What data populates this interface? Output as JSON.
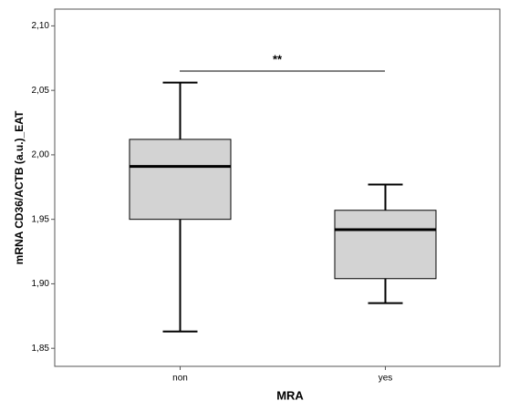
{
  "chart_data": {
    "type": "box",
    "x_label": "MRA",
    "y_label": "mRNA CD36/ACTB (a.u.)_EAT",
    "annotation": "**",
    "categories": [
      "non",
      "yes"
    ],
    "low": [
      1.863,
      1.885
    ],
    "q1": [
      1.95,
      1.904
    ],
    "median": [
      1.991,
      1.942
    ],
    "q3": [
      2.012,
      1.957
    ],
    "high": [
      2.056,
      1.977
    ],
    "color": "#d3d3d3",
    "ylim": [
      1.836,
      2.113
    ],
    "yticks": [
      {
        "value": 1.85,
        "label": "1,85"
      },
      {
        "value": 1.9,
        "label": "1,90"
      },
      {
        "value": 1.95,
        "label": "1,95"
      },
      {
        "value": 2.0,
        "label": "2,00"
      },
      {
        "value": 2.05,
        "label": "2,05"
      },
      {
        "value": 2.1,
        "label": "2,10"
      }
    ]
  }
}
